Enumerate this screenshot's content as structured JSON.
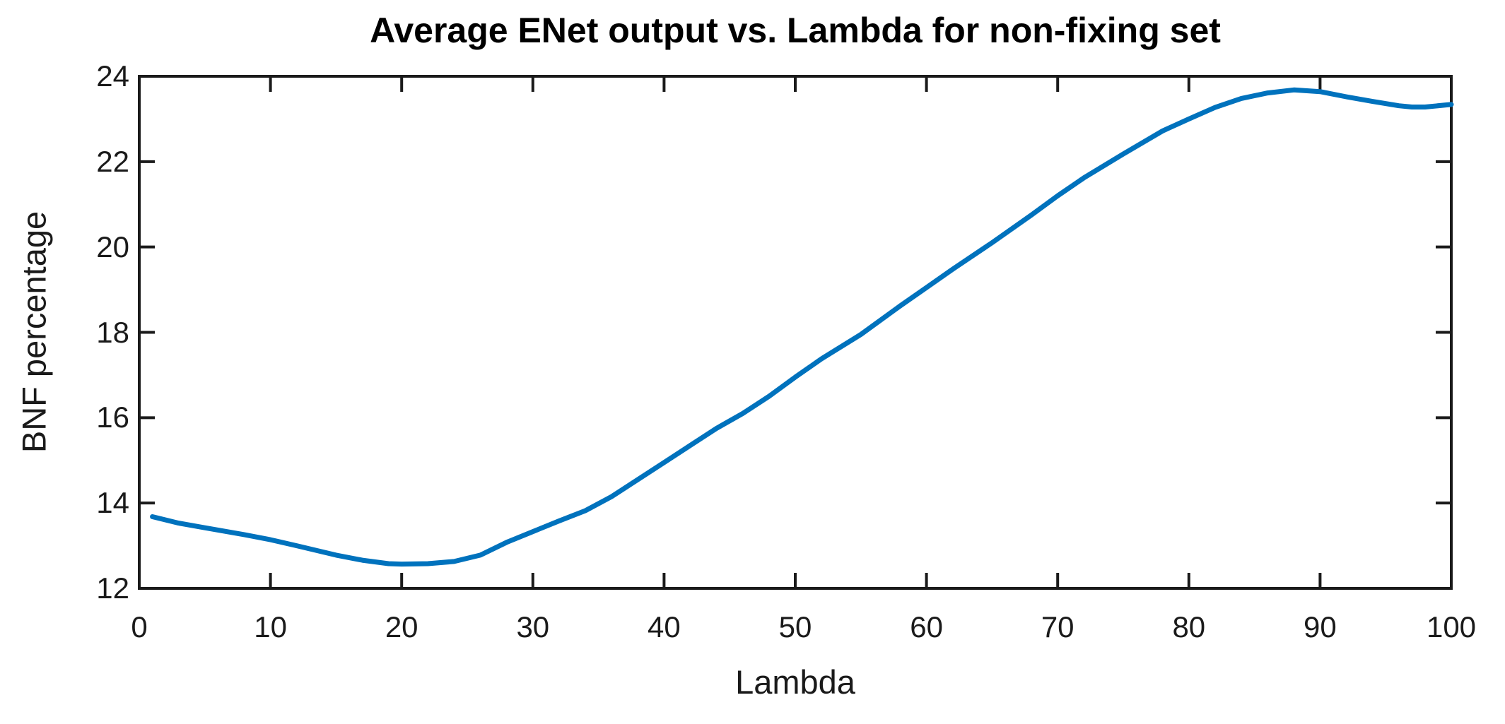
{
  "chart_data": {
    "type": "line",
    "title": "Average ENet output vs. Lambda for non-fixing set",
    "xlabel": "Lambda",
    "ylabel": "BNF percentage",
    "xlim": [
      0,
      100
    ],
    "ylim": [
      12,
      24
    ],
    "x_ticks": [
      0,
      10,
      20,
      30,
      40,
      50,
      60,
      70,
      80,
      90,
      100
    ],
    "y_ticks": [
      12,
      14,
      16,
      18,
      20,
      22,
      24
    ],
    "grid": false,
    "legend": "none",
    "box": true,
    "tick_direction": "in",
    "series": [
      {
        "name": "Average ENet output",
        "color": "#0072BD",
        "points": [
          [
            1,
            13.68
          ],
          [
            3,
            13.53
          ],
          [
            5,
            13.42
          ],
          [
            8,
            13.26
          ],
          [
            10,
            13.14
          ],
          [
            12,
            13.0
          ],
          [
            15,
            12.78
          ],
          [
            17,
            12.66
          ],
          [
            19,
            12.58
          ],
          [
            20,
            12.57
          ],
          [
            22,
            12.58
          ],
          [
            24,
            12.63
          ],
          [
            26,
            12.78
          ],
          [
            28,
            13.08
          ],
          [
            30,
            13.33
          ],
          [
            32,
            13.58
          ],
          [
            34,
            13.82
          ],
          [
            36,
            14.15
          ],
          [
            38,
            14.55
          ],
          [
            40,
            14.95
          ],
          [
            42,
            15.35
          ],
          [
            44,
            15.75
          ],
          [
            46,
            16.1
          ],
          [
            48,
            16.5
          ],
          [
            50,
            16.95
          ],
          [
            52,
            17.38
          ],
          [
            55,
            17.95
          ],
          [
            58,
            18.62
          ],
          [
            60,
            19.05
          ],
          [
            62,
            19.48
          ],
          [
            65,
            20.1
          ],
          [
            68,
            20.75
          ],
          [
            70,
            21.2
          ],
          [
            72,
            21.62
          ],
          [
            75,
            22.18
          ],
          [
            78,
            22.72
          ],
          [
            80,
            23.0
          ],
          [
            82,
            23.27
          ],
          [
            84,
            23.48
          ],
          [
            86,
            23.61
          ],
          [
            88,
            23.68
          ],
          [
            90,
            23.64
          ],
          [
            92,
            23.52
          ],
          [
            94,
            23.41
          ],
          [
            96,
            23.31
          ],
          [
            97,
            23.28
          ],
          [
            98,
            23.28
          ],
          [
            100,
            23.34
          ]
        ]
      }
    ],
    "axis_color": "#1a1a1a"
  }
}
